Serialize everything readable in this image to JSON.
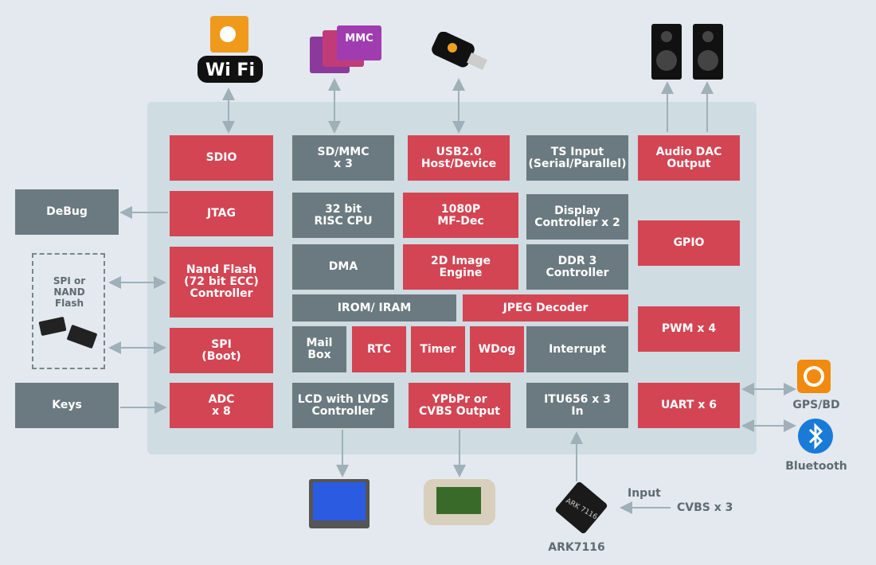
{
  "blocks": {
    "sdio": "SDIO",
    "jtag": "JTAG",
    "nand": "Nand Flash\n(72 bit ECC)\nController",
    "spi": "SPI\n(Boot)",
    "adc": "ADC\nx 8",
    "sdmmc": "SD/MMC\nx 3",
    "cpu": "32 bit\nRISC  CPU",
    "dma": "DMA",
    "irom": "IROM/ IRAM",
    "mailbox": "Mail\nBox",
    "rtc": "RTC",
    "timer": "Timer",
    "wdog": "WDog",
    "interrupt": "Interrupt",
    "lcd": "LCD with LVDS\nController",
    "usb": "USB2.0\nHost/Device",
    "mfdec": "1080P\nMF-Dec",
    "img2d": "2D Image\nEngine",
    "jpeg": "JPEG Decoder",
    "ypbpr": "YPbPr or\nCVBS Output",
    "ts": "TS Input\n(Serial/Parallel)",
    "display": "Display\nController x 2",
    "ddr": "DDR 3\nController",
    "itu": "ITU656 x 3\nIn",
    "audio": "Audio DAC\nOutput",
    "gpio": "GPIO",
    "pwm": "PWM x 4",
    "uart": "UART x 6"
  },
  "external": {
    "debug": "DeBug",
    "keys": "Keys",
    "flash": "SPI or\nNAND\nFlash",
    "gps": "GPS/BD",
    "bluetooth": "Bluetooth",
    "ark": "ARK7116",
    "input": "Input",
    "cvbs": "CVBS x 3"
  },
  "logos": {
    "wifi": "Wi Fi",
    "mmc": "MMC SD",
    "ark_chip": "ARK 7116"
  },
  "colors": {
    "red": "#d34553",
    "gray": "#6a7a80",
    "panel": "#cfdce2",
    "background": "#e3e9ee"
  }
}
